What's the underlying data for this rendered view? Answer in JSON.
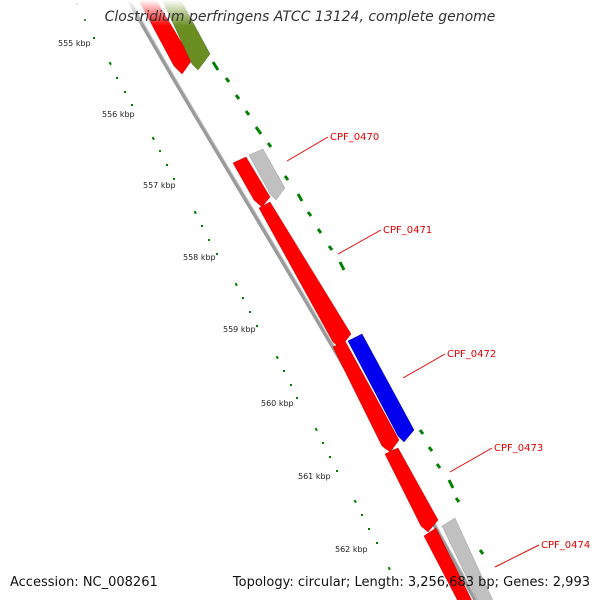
{
  "title": "Clostridium perfringens ATCC 13124, complete genome",
  "footer": {
    "accession": "Accession: NC_008261",
    "stats": "Topology: circular; Length: 3,256,683 bp; Genes: 2,993"
  },
  "ruler": {
    "labels": [
      "555 kbp",
      "556 kbp",
      "557 kbp",
      "558 kbp",
      "559 kbp",
      "560 kbp",
      "561 kbp",
      "562 kbp"
    ]
  },
  "genes": [
    {
      "name": "CPF_0470"
    },
    {
      "name": "CPF_0471"
    },
    {
      "name": "CPF_0472"
    },
    {
      "name": "CPF_0473"
    },
    {
      "name": "CPF_0474"
    }
  ],
  "colors": {
    "forward_gene": "#ff0000",
    "rna_gene": "#0000ee",
    "pseudo_gene": "#c0c0c0",
    "other_gene": "#6b8e23",
    "backbone": "#808080",
    "tick_minor": "#008000",
    "label": "#e60000"
  }
}
